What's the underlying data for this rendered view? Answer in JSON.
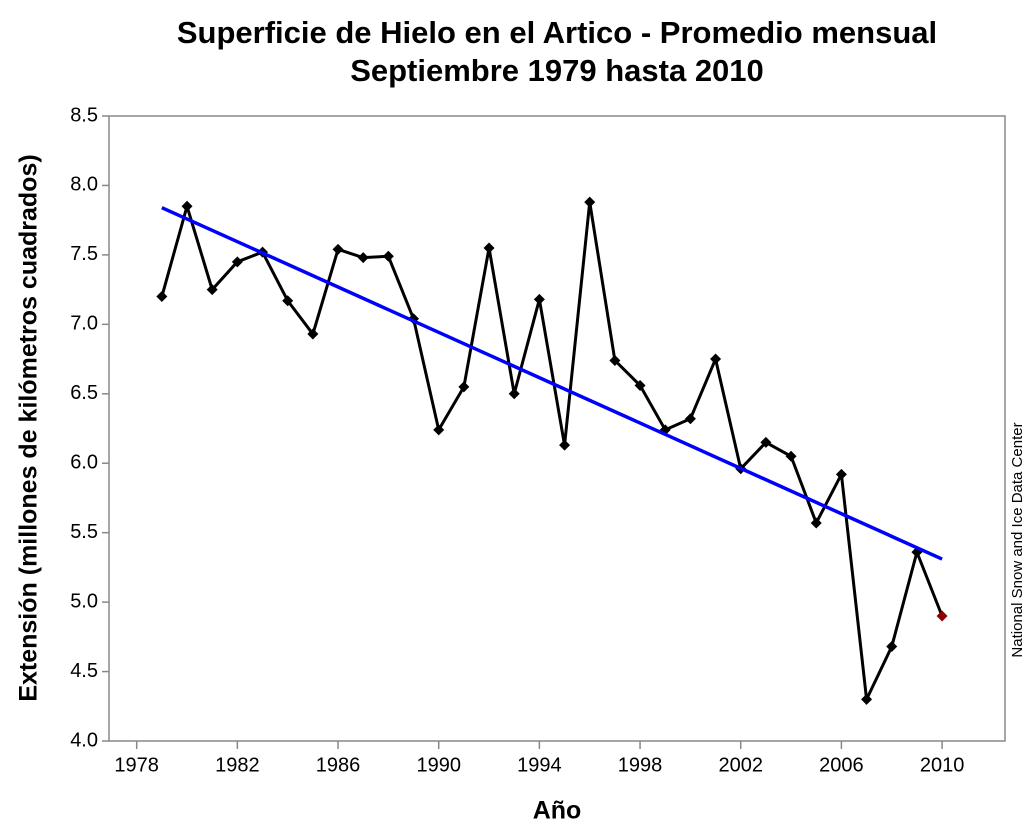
{
  "chart_data": {
    "type": "line",
    "title": [
      "Superficie de Hielo en el Artico - Promedio mensual",
      "Septiembre 1979 hasta 2010"
    ],
    "x_label": "Año",
    "y_label": "Extensión (millones de kilómetros cuadrados)",
    "source": "National Snow and Ice Data Center",
    "xlim": [
      1976.9,
      2012.5
    ],
    "ylim": [
      4.0,
      8.5
    ],
    "xticks": [
      1978,
      1982,
      1986,
      1990,
      1994,
      1998,
      2002,
      2006,
      2010
    ],
    "yticks": [
      {
        "value": 4.0,
        "label": "4.0"
      },
      4.5,
      {
        "value": 5.0,
        "label": "5.0"
      },
      5.5,
      {
        "value": 6.0,
        "label": "6.0"
      },
      6.5,
      {
        "value": 7.0,
        "label": "7.0"
      },
      7.5,
      {
        "value": 8.0,
        "label": "8.0"
      },
      8.5
    ],
    "series": [
      {
        "color": "#000000",
        "last_marker_color": "#8b0000",
        "x": [
          1979,
          1980,
          1981,
          1982,
          1983,
          1984,
          1985,
          1986,
          1987,
          1988,
          1989,
          1990,
          1991,
          1992,
          1993,
          1994,
          1995,
          1996,
          1997,
          1998,
          1999,
          2000,
          2001,
          2002,
          2003,
          2004,
          2005,
          2006,
          2007,
          2008,
          2009,
          2010
        ],
        "values": [
          7.2,
          7.85,
          7.25,
          7.45,
          7.52,
          7.17,
          6.93,
          7.54,
          7.48,
          7.49,
          7.04,
          6.24,
          6.55,
          7.55,
          6.5,
          7.18,
          6.13,
          7.88,
          6.74,
          6.56,
          6.24,
          6.32,
          6.75,
          5.96,
          6.15,
          6.05,
          5.57,
          5.92,
          4.3,
          4.68,
          5.36,
          4.9
        ]
      },
      {
        "color": "#0000ff",
        "x": [
          1979,
          2010
        ],
        "values": [
          7.84,
          5.31
        ]
      }
    ]
  }
}
